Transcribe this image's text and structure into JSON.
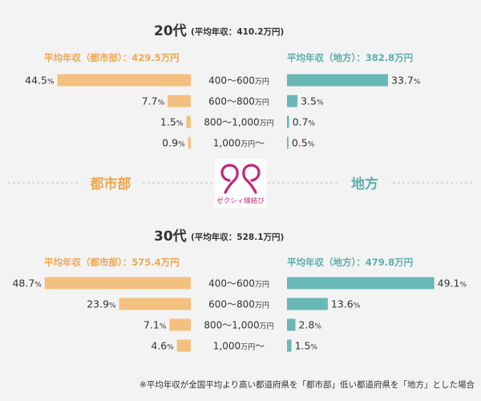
{
  "logo_text": "ゼクシィ縁結び",
  "colors": {
    "urban": "#f4c07f",
    "rural": "#6ab7b8",
    "urban_text": "#f0a64f",
    "rural_text": "#5aaeb0",
    "text": "#333333",
    "logo": "#c0267a"
  },
  "footnote": "※平均年収が全国平均より高い都道府県を「都市部」低い都道府県を「地方」とした場合",
  "side_labels": {
    "left": "都市部",
    "right": "地方"
  },
  "chart_data": [
    {
      "type": "bar",
      "title": "20代",
      "subtitle": "(平均年収：410.2万円)",
      "left_header": "平均年収（都市部）：429.5万円",
      "right_header": "平均年収（地方）：382.8万円",
      "categories": [
        "400〜600万円",
        "600〜800万円",
        "800〜1,000万円",
        "1,000万円〜"
      ],
      "series": [
        {
          "values": [
            44.5,
            7.7,
            1.5,
            0.9
          ],
          "labels": [
            "44.5",
            "7.7",
            "1.5",
            "0.9"
          ],
          "unit": "%"
        },
        {
          "values": [
            33.7,
            3.5,
            0.7,
            0.5
          ],
          "labels": [
            "33.7",
            "3.5",
            "0.7",
            "0.5"
          ],
          "unit": "%"
        }
      ]
    },
    {
      "type": "bar",
      "title": "30代",
      "subtitle": "(平均年収：528.1万円)",
      "left_header": "平均年収（都市部）：575.4万円",
      "right_header": "平均年収（地方）：479.8万円",
      "categories": [
        "400〜600万円",
        "600〜800万円",
        "800〜1,000万円",
        "1,000万円〜"
      ],
      "series": [
        {
          "values": [
            48.7,
            23.9,
            7.1,
            4.6
          ],
          "labels": [
            "48.7",
            "23.9",
            "7.1",
            "4.6"
          ],
          "unit": "%"
        },
        {
          "values": [
            49.1,
            13.6,
            2.8,
            1.5
          ],
          "labels": [
            "49.1",
            "13.6",
            "2.8",
            "1.5"
          ],
          "unit": "%"
        }
      ]
    }
  ]
}
